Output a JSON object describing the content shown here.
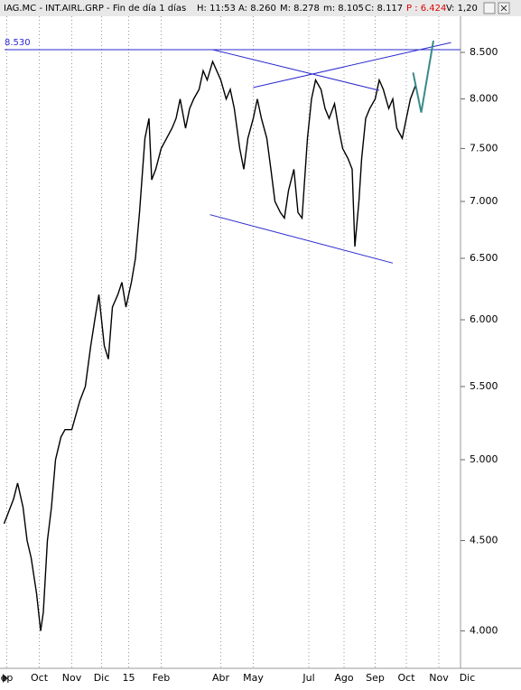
{
  "chart_data": {
    "type": "line",
    "header": {
      "symbol": "IAG.MC - INT.AIRL.GRP - Fin de día 1 días",
      "time": "H: 11:53",
      "open": "A: 8.260",
      "high": "M: 8.278",
      "low": "m: 8.105",
      "close": "C: 8.117",
      "p": "P : 6.424",
      "volume": "V: 1,20"
    },
    "log_scale": true,
    "grid": true,
    "x": [
      3,
      10,
      13,
      17,
      20,
      23,
      27,
      30,
      32,
      35,
      38,
      41,
      45,
      48,
      53,
      59,
      63,
      67,
      70,
      73,
      77,
      80,
      83,
      87,
      90,
      93,
      97,
      100,
      103,
      107,
      110,
      112,
      115,
      119,
      123,
      127,
      130,
      133,
      137,
      140,
      143,
      147,
      150,
      153,
      157,
      160,
      163,
      167,
      170,
      173,
      177,
      180,
      183,
      187,
      190,
      193,
      197,
      200,
      203,
      207,
      210,
      213,
      217,
      220,
      223,
      227,
      230,
      233,
      237,
      240,
      243,
      247,
      250,
      253,
      257,
      260,
      262,
      265,
      267,
      270,
      273,
      277,
      280,
      283,
      287,
      290,
      293,
      297,
      300,
      303,
      307
    ],
    "series": [
      {
        "color": "#000000",
        "values": [
          4.6,
          4.75,
          4.85,
          4.7,
          4.5,
          4.4,
          4.2,
          4.0,
          4.1,
          4.5,
          4.7,
          5.0,
          5.15,
          5.2,
          5.2,
          5.4,
          5.5,
          5.8,
          6.0,
          6.2,
          5.8,
          5.7,
          6.1,
          6.2,
          6.3,
          6.1,
          6.3,
          6.5,
          6.9,
          7.6,
          7.8,
          7.2,
          7.3,
          7.5,
          7.6,
          7.7,
          7.8,
          8.0,
          7.7,
          7.9,
          8.0,
          8.1,
          8.3,
          8.2,
          8.4,
          8.3,
          8.2,
          8.0,
          8.1,
          7.9,
          7.5,
          7.3,
          7.6,
          7.8,
          8.0,
          7.8,
          7.6,
          7.3,
          7.0,
          6.9,
          6.85,
          7.1,
          7.3,
          6.9,
          6.85,
          7.6,
          8.0,
          8.2,
          8.1,
          7.9,
          7.8,
          7.95,
          7.7,
          7.5,
          7.4,
          7.3,
          6.6,
          7.0,
          7.4,
          7.8,
          7.9,
          8.0,
          8.2,
          8.1,
          7.9,
          8.0,
          7.7,
          7.6,
          7.8,
          8.0,
          8.15
        ]
      }
    ],
    "projection": {
      "color": "#3a8a8a",
      "x": [
        305,
        311,
        320
      ],
      "values": [
        8.28,
        7.86,
        8.63
      ]
    },
    "level": {
      "value": 8.53,
      "label": "8.530",
      "color": "#2a2ad0"
    },
    "trendlines": {
      "color": "#2a2ad0",
      "lines": [
        {
          "x": [
            157,
            280
          ],
          "values": [
            8.53,
            8.09
          ]
        },
        {
          "x": [
            187,
            333
          ],
          "values": [
            8.12,
            8.61
          ]
        },
        {
          "x": [
            155,
            290
          ],
          "values": [
            6.88,
            6.46
          ]
        }
      ]
    },
    "xlim": [
      0,
      340
    ],
    "xticks": [
      {
        "value": 5,
        "label": "ep"
      },
      {
        "value": 29,
        "label": "Oct"
      },
      {
        "value": 53,
        "label": "Nov"
      },
      {
        "value": 75,
        "label": "Dic"
      },
      {
        "value": 95,
        "label": "15"
      },
      {
        "value": 119,
        "label": "Feb"
      },
      {
        "value": 163,
        "label": "Abr"
      },
      {
        "value": 187,
        "label": "May"
      },
      {
        "value": 228,
        "label": "Jul"
      },
      {
        "value": 254,
        "label": "Ago"
      },
      {
        "value": 277,
        "label": "Sep"
      },
      {
        "value": 300,
        "label": "Oct"
      },
      {
        "value": 324,
        "label": "Nov"
      },
      {
        "value": 345,
        "label": "Dic"
      }
    ],
    "ylim": [
      3.81,
      8.91
    ],
    "yticks": [
      {
        "value": 4,
        "label": "4.000"
      },
      {
        "value": 4.5,
        "label": "4.500"
      },
      {
        "value": 5,
        "label": "5.000"
      },
      {
        "value": 5.5,
        "label": "5.500"
      },
      {
        "value": 6,
        "label": "6.000"
      },
      {
        "value": 6.5,
        "label": "6.500"
      },
      {
        "value": 7,
        "label": "7.000"
      },
      {
        "value": 7.5,
        "label": "7.500"
      },
      {
        "value": 8,
        "label": "8.000"
      },
      {
        "value": 8.5,
        "label": "8.500"
      }
    ]
  }
}
